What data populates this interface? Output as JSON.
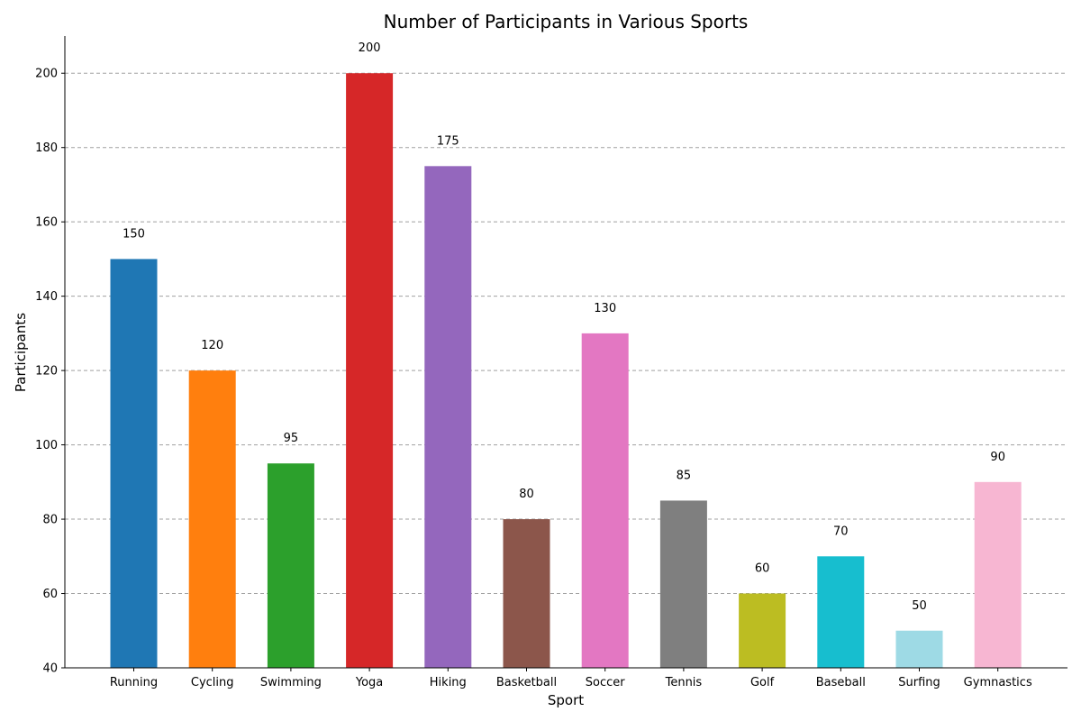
{
  "chart_data": {
    "type": "bar",
    "title": "Number of Participants in Various Sports",
    "xlabel": "Sport",
    "ylabel": "Participants",
    "categories": [
      "Running",
      "Cycling",
      "Swimming",
      "Yoga",
      "Hiking",
      "Basketball",
      "Soccer",
      "Tennis",
      "Golf",
      "Baseball",
      "Surfing",
      "Gymnastics"
    ],
    "values": [
      150,
      120,
      95,
      200,
      175,
      80,
      130,
      85,
      60,
      70,
      50,
      90
    ],
    "colors": [
      "#1f77b4",
      "#ff7f0e",
      "#2ca02c",
      "#d62728",
      "#9467bd",
      "#8c564b",
      "#e377c2",
      "#7f7f7f",
      "#bcbd22",
      "#17becf",
      "#9edae5",
      "#f7b6d2"
    ],
    "ylim": [
      40,
      210
    ],
    "yticks": [
      40,
      60,
      80,
      100,
      120,
      140,
      160,
      180,
      200
    ],
    "grid": "y-dashed",
    "data_labels": true,
    "legend": "none"
  }
}
